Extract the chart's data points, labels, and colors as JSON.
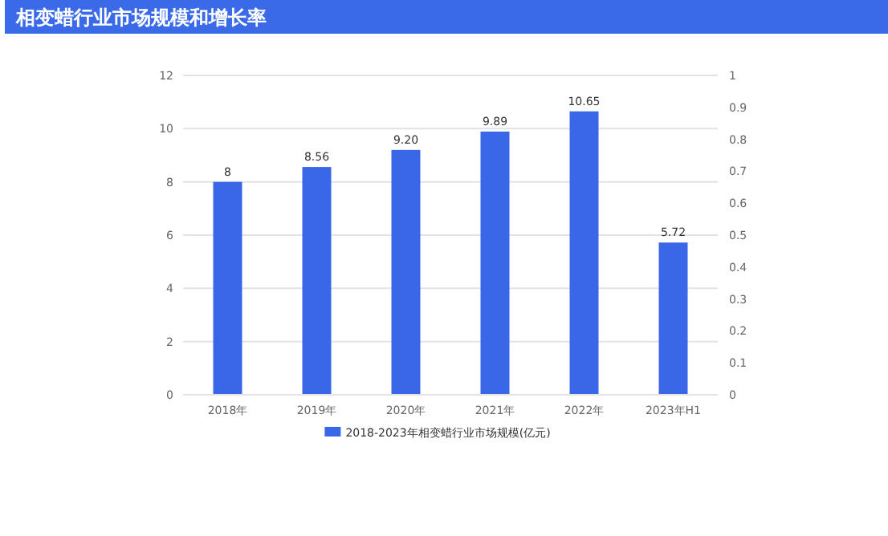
{
  "chart_data": {
    "type": "bar",
    "title": "相变蜡行业市场规模和增长率",
    "categories": [
      "2018年",
      "2019年",
      "2020年",
      "2021年",
      "2022年",
      "2023年H1"
    ],
    "series": [
      {
        "name": "2018-2023年相变蜡行业市场规模(亿元)",
        "color": "#3a66e8",
        "values": [
          8,
          8.56,
          9.2,
          9.89,
          10.65,
          5.72
        ]
      }
    ],
    "value_labels": [
      "8",
      "8.56",
      "9.20",
      "9.89",
      "10.65",
      "5.72"
    ],
    "ylim": [
      0,
      12
    ],
    "yticks": [
      0,
      2,
      4,
      6,
      8,
      10,
      12
    ],
    "y2lim": [
      0,
      1
    ],
    "y2ticks": [
      0,
      0.1,
      0.2,
      0.3,
      0.4,
      0.5,
      0.6,
      0.7,
      0.8,
      0.9,
      1
    ],
    "grid": "y",
    "legend": "bottom"
  }
}
